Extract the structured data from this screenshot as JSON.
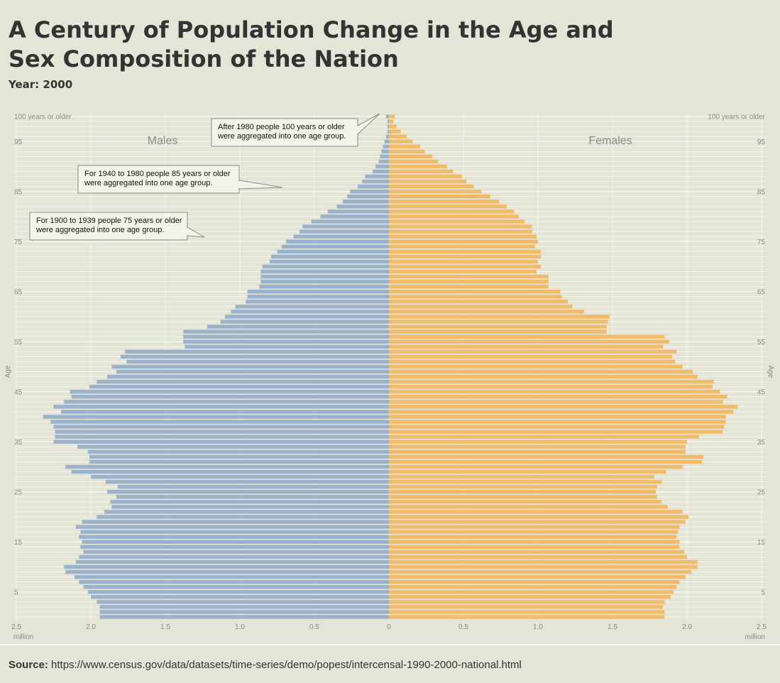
{
  "title": "A Century of Population Change in the Age and Sex Composition of the Nation",
  "subtitle": "Year: 2000",
  "source": {
    "label": "Source:",
    "text": "https://www.census.gov/data/datasets/time-series/demo/popest/intercensal-1990-2000-national.html"
  },
  "colors": {
    "males": "#9bb2cc",
    "females": "#f0bc6c",
    "background": "#e5e5d7"
  },
  "chart_data": {
    "type": "bar",
    "orientation": "horizontal",
    "subtype": "population-pyramid",
    "ylabel": "Age",
    "xlabel": "million",
    "xlim": [
      0,
      2.5
    ],
    "x_ticks": [
      "2.5",
      "2.0",
      "1.5",
      "1.0",
      "0.5",
      "0",
      "0.5",
      "1.0",
      "1.5",
      "2.0",
      "2.5"
    ],
    "y_ticks": [
      {
        "age": 5,
        "label": "5"
      },
      {
        "age": 15,
        "label": "15"
      },
      {
        "age": 25,
        "label": "25"
      },
      {
        "age": 35,
        "label": "35"
      },
      {
        "age": 45,
        "label": "45"
      },
      {
        "age": 55,
        "label": "55"
      },
      {
        "age": 65,
        "label": "65"
      },
      {
        "age": 75,
        "label": "75"
      },
      {
        "age": 85,
        "label": "85"
      },
      {
        "age": 95,
        "label": "95"
      },
      {
        "age": 100,
        "label": "100 years or older"
      }
    ],
    "categories_note": "ages 0 to 100 (100 = 100 years or older)",
    "series": [
      {
        "name": "Males",
        "values": [
          1.94,
          1.94,
          1.94,
          1.96,
          2.0,
          2.02,
          2.05,
          2.08,
          2.11,
          2.17,
          2.18,
          2.1,
          2.08,
          2.05,
          2.07,
          2.06,
          2.08,
          2.07,
          2.1,
          2.06,
          1.96,
          1.91,
          1.86,
          1.87,
          1.83,
          1.89,
          1.82,
          1.9,
          2.0,
          2.13,
          2.17,
          2.01,
          2.01,
          2.02,
          2.09,
          2.25,
          2.24,
          2.24,
          2.25,
          2.27,
          2.32,
          2.2,
          2.25,
          2.18,
          2.13,
          2.14,
          2.01,
          1.96,
          1.89,
          1.83,
          1.86,
          1.76,
          1.8,
          1.77,
          1.37,
          1.38,
          1.38,
          1.38,
          1.22,
          1.13,
          1.1,
          1.06,
          1.03,
          0.96,
          0.95,
          0.95,
          0.87,
          0.86,
          0.86,
          0.86,
          0.85,
          0.8,
          0.79,
          0.75,
          0.72,
          0.69,
          0.64,
          0.6,
          0.58,
          0.52,
          0.46,
          0.41,
          0.35,
          0.31,
          0.28,
          0.26,
          0.21,
          0.18,
          0.16,
          0.11,
          0.09,
          0.07,
          0.06,
          0.05,
          0.04,
          0.03,
          0.02,
          0.01,
          0.01,
          0.01,
          0.02
        ]
      },
      {
        "name": "Females",
        "values": [
          1.85,
          1.85,
          1.84,
          1.85,
          1.89,
          1.91,
          1.93,
          1.95,
          1.99,
          2.03,
          2.07,
          2.07,
          2.0,
          1.98,
          1.95,
          1.95,
          1.93,
          1.94,
          1.95,
          1.99,
          2.01,
          1.97,
          1.87,
          1.83,
          1.8,
          1.79,
          1.8,
          1.83,
          1.78,
          1.86,
          1.97,
          2.1,
          2.11,
          1.99,
          1.99,
          2.0,
          2.08,
          2.24,
          2.25,
          2.26,
          2.26,
          2.31,
          2.34,
          2.24,
          2.27,
          2.22,
          2.17,
          2.18,
          2.07,
          2.04,
          1.97,
          1.92,
          1.9,
          1.93,
          1.84,
          1.88,
          1.85,
          1.46,
          1.46,
          1.47,
          1.48,
          1.31,
          1.23,
          1.2,
          1.16,
          1.15,
          1.07,
          1.07,
          1.07,
          0.99,
          1.02,
          1.0,
          1.02,
          1.02,
          0.98,
          1.0,
          0.99,
          0.96,
          0.96,
          0.91,
          0.87,
          0.84,
          0.79,
          0.74,
          0.68,
          0.62,
          0.57,
          0.52,
          0.49,
          0.43,
          0.39,
          0.33,
          0.29,
          0.24,
          0.21,
          0.16,
          0.12,
          0.08,
          0.05,
          0.03,
          0.04
        ]
      }
    ],
    "labels": {
      "males": "Males",
      "females": "Females"
    },
    "annotations": [
      {
        "lines": [
          "After 1980 people 100 years or older",
          "were aggregated into one age group."
        ]
      },
      {
        "lines": [
          "For 1940 to 1980 people 85 years or older",
          "were aggregated into one age group."
        ]
      },
      {
        "lines": [
          "For 1900 to 1939 people 75 years or older",
          "were aggregated into one age group."
        ]
      }
    ],
    "grid": true
  }
}
